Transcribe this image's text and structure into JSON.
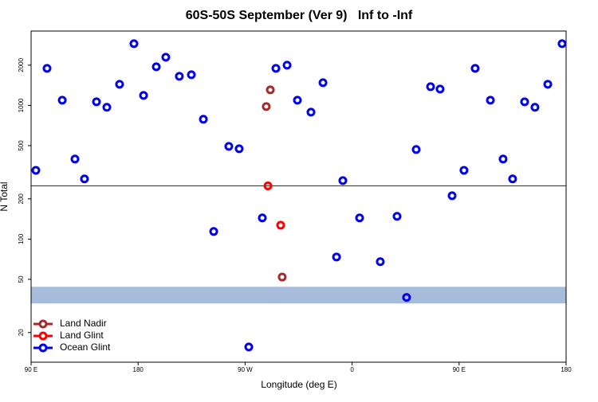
{
  "chart_data": {
    "type": "scatter",
    "title": "60S-50S September (Ver 9)   Inf to -Inf",
    "xlabel": "Longitude (deg E)",
    "ylabel": "N Total",
    "xlim": [
      90,
      540
    ],
    "ylim": [
      12,
      3600
    ],
    "ylog": true,
    "xticks": [
      {
        "value": 90,
        "label": "90 E"
      },
      180,
      {
        "value": 270,
        "label": "90 W"
      },
      {
        "value": 360,
        "label": "0"
      },
      {
        "value": 450,
        "label": "90 E"
      },
      {
        "value": 540,
        "label": "180"
      }
    ],
    "yticks": [
      20,
      50,
      100,
      200,
      500,
      1000,
      2000
    ],
    "hline": 250,
    "hline_color": "#333333",
    "band": [
      33,
      44
    ],
    "band_color": "#a7bcdb",
    "legend": "lower left",
    "series": [
      {
        "name": "Land Nadir",
        "color": "#a52a2a",
        "x": [
          291.2,
          287.8,
          301.2
        ],
        "values": [
          1308,
          980,
          52
        ]
      },
      {
        "name": "Land Glint",
        "color": "#ff0000",
        "x": [
          289.2,
          299.9
        ],
        "values": [
          250,
          127
        ]
      },
      {
        "name": "Ocean Glint",
        "color": "#0000ee",
        "x": [
          94.0,
          103.4,
          116.2,
          126.9,
          134.9,
          145.0,
          153.7,
          164.4,
          176.5,
          184.6,
          195.3,
          203.3,
          214.7,
          224.8,
          234.9,
          243.6,
          256.3,
          265.0,
          273.1,
          284.5,
          295.9,
          305.3,
          314.0,
          325.4,
          335.5,
          346.9,
          352.2,
          366.3,
          383.7,
          397.8,
          405.8,
          413.9,
          426.0,
          434.0,
          444.1,
          454.1,
          463.5,
          476.3,
          487.0,
          495.0,
          505.1,
          513.8,
          524.6,
          536.6
        ],
        "values": [
          327,
          1892,
          1094,
          397,
          282,
          1064,
          968,
          1440,
          2896,
          1188,
          1946,
          2294,
          1650,
          1696,
          788,
          114,
          494,
          474,
          15.6,
          144,
          1892,
          2000,
          1094,
          891,
          1480,
          73.5,
          274,
          144,
          67.8,
          148,
          36.6,
          468,
          1380,
          1326,
          211,
          327,
          1892,
          1094,
          397,
          282,
          1064,
          968,
          1440,
          2896
        ]
      }
    ]
  }
}
